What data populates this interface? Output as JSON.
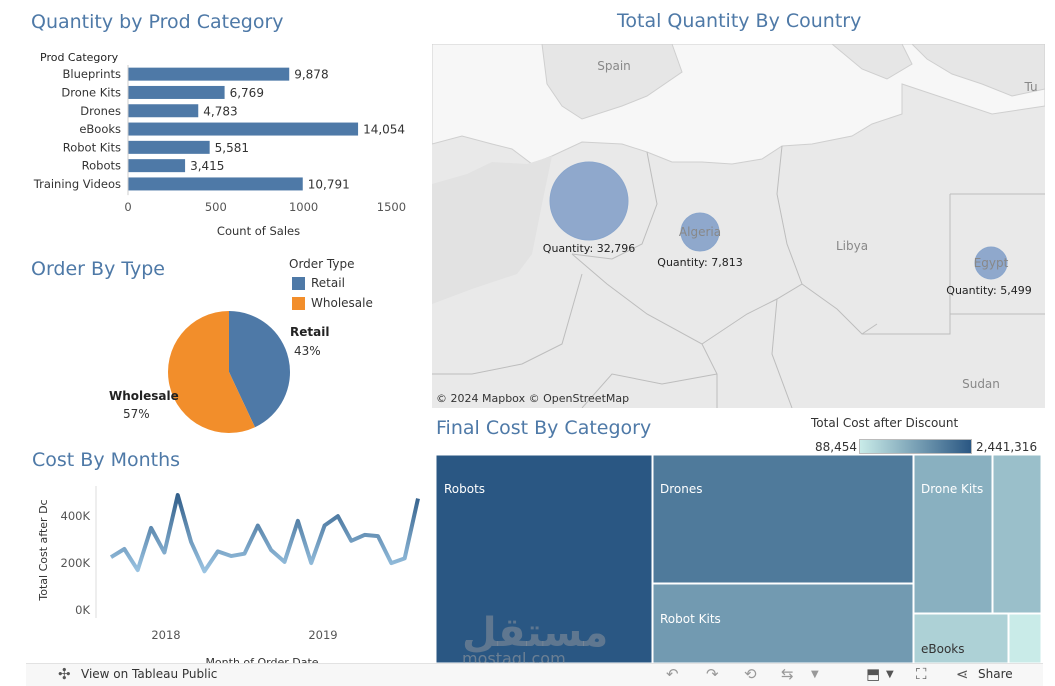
{
  "titles": {
    "prod_category": "Quantity by Prod Category",
    "country": "Total Quantity By Country",
    "order_type": "Order By Type",
    "months": "Cost By Months",
    "final_cost": "Final Cost By Category"
  },
  "map": {
    "attribution": "© 2024 Mapbox © OpenStreetMap",
    "place_labels": [
      "Spain",
      "Libya",
      "Sudan",
      "Tu"
    ]
  },
  "legend_order_type": {
    "title": "Order Type",
    "items": [
      {
        "label": "Retail",
        "color": "#4e79a7"
      },
      {
        "label": "Wholesale",
        "color": "#f28e2b"
      }
    ]
  },
  "treemap_legend": {
    "title": "Total Cost after Discount",
    "min_label": "88,454",
    "max_label": "2,441,316",
    "color_low": "#c9ebe8",
    "color_high": "#2a5783"
  },
  "toolbar": {
    "view_label": "View on Tableau Public",
    "share_label": "Share"
  },
  "watermark": {
    "text": "mostaql.com"
  },
  "chart_data": [
    {
      "type": "bar",
      "orientation": "horizontal",
      "title": "Quantity by Prod Category",
      "category_header": "Prod Category",
      "categories": [
        "Blueprints",
        "Drone Kits",
        "Drones",
        "eBooks",
        "Robot Kits",
        "Robots",
        "Training Videos"
      ],
      "bar_lengths": [
        918,
        550,
        400,
        1310,
        465,
        325,
        995
      ],
      "labels": [
        "9,878",
        "6,769",
        "4,783",
        "14,054",
        "5,581",
        "3,415",
        "10,791"
      ],
      "xlabel": "Count of Sales",
      "xlim": [
        0,
        1600
      ],
      "xticks": [
        0,
        500,
        1000,
        1500
      ],
      "color": "#4e79a7"
    },
    {
      "type": "scatter",
      "subtype": "map-bubbles",
      "title": "Total Quantity By Country",
      "points": [
        {
          "country": "",
          "value": 32796,
          "label": "Quantity: 32,796"
        },
        {
          "country": "Algeria",
          "value": 7813,
          "label": "Quantity: 7,813"
        },
        {
          "country": "Egypt",
          "value": 5499,
          "label": "Quantity: 5,499"
        }
      ],
      "color": "#7f9cc7"
    },
    {
      "type": "pie",
      "title": "Order By Type",
      "slices": [
        {
          "name": "Retail",
          "value": 43,
          "label": "43%",
          "color": "#4e79a7"
        },
        {
          "name": "Wholesale",
          "value": 57,
          "label": "57%",
          "color": "#f28e2b"
        }
      ]
    },
    {
      "type": "line",
      "title": "Cost By Months",
      "ylabel": "Total Cost after Dc",
      "xlabel": "Month of Order Date",
      "xticks": [
        "2018",
        "2019"
      ],
      "yticks": [
        "0K",
        "200K",
        "400K"
      ],
      "ylim": [
        0,
        520000
      ],
      "values": [
        225000,
        260000,
        170000,
        350000,
        245000,
        490000,
        290000,
        165000,
        250000,
        230000,
        240000,
        360000,
        255000,
        205000,
        380000,
        200000,
        360000,
        400000,
        295000,
        320000,
        315000,
        200000,
        220000,
        475000
      ]
    },
    {
      "type": "heatmap",
      "subtype": "treemap",
      "title": "Final Cost By Category",
      "cells": [
        {
          "name": "Robots",
          "value": 2441316,
          "label": "Robots"
        },
        {
          "name": "Drones",
          "value": 1600000,
          "label": "Drones"
        },
        {
          "name": "Robot Kits",
          "value": 950000,
          "label": "Robot Kits"
        },
        {
          "name": "Drone Kits",
          "value": 600000,
          "label": "Drone Kits"
        },
        {
          "name": "Blueprints",
          "value": 400000,
          "label": ""
        },
        {
          "name": "eBooks",
          "value": 220000,
          "label": "eBooks"
        },
        {
          "name": "Training Videos",
          "value": 88454,
          "label": ""
        }
      ]
    }
  ]
}
